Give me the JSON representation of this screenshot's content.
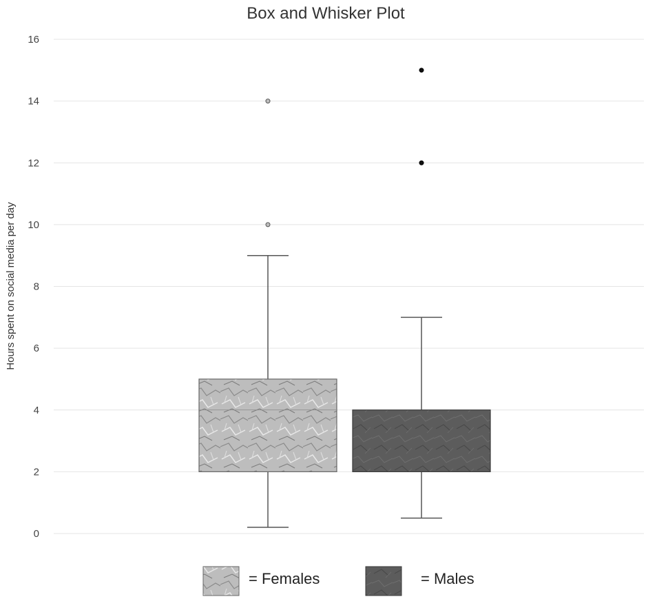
{
  "chart_data": {
    "type": "box",
    "title": "Box and Whisker Plot",
    "xlabel": "",
    "ylabel": "Hours spent on social media per day",
    "ylim": [
      0,
      16
    ],
    "yticks": [
      0,
      2,
      4,
      6,
      8,
      10,
      12,
      14,
      16
    ],
    "grid": true,
    "legend_position": "bottom",
    "series": [
      {
        "name": "Females",
        "legend_label": "= Females",
        "whisker_low": 0.2,
        "q1": 2,
        "median": 4,
        "q3": 5,
        "whisker_high": 9,
        "outliers": [
          10,
          14
        ],
        "fill": "#b9b9b9",
        "stroke": "#666666"
      },
      {
        "name": "Males",
        "legend_label": "= Males",
        "whisker_low": 0.5,
        "q1": 2,
        "median": 4,
        "q3": 4,
        "whisker_high": 7,
        "outliers": [
          12,
          15
        ],
        "fill": "#5e5e5e",
        "stroke": "#3a3a3a"
      }
    ]
  }
}
